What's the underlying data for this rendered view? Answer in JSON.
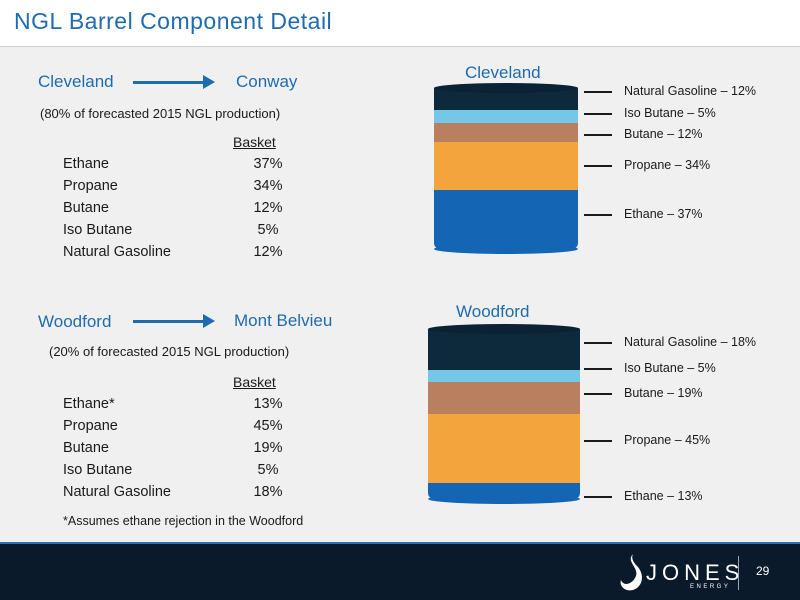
{
  "title": "NGL Barrel Component Detail",
  "colors": {
    "accent": "#1e6bb0",
    "footer": "#0b1a2a",
    "ethane": "#1565b5",
    "propane": "#f4a43c",
    "butane": "#b8805f",
    "iso_butane": "#74c7e6",
    "natural_gasoline": "#0d2a3d"
  },
  "cleveland": {
    "from": "Cleveland",
    "to": "Conway",
    "subtitle": "(80% of forecasted 2015 NGL production)",
    "basket_header": "Basket",
    "rows": [
      {
        "name": "Ethane",
        "value": "37%"
      },
      {
        "name": "Propane",
        "value": "34%"
      },
      {
        "name": "Butane",
        "value": "12%"
      },
      {
        "name": "Iso Butane",
        "value": "5%"
      },
      {
        "name": "Natural Gasoline",
        "value": "12%"
      }
    ],
    "barrel_label": "Cleveland",
    "legend": [
      "Natural Gasoline – 12%",
      "Iso Butane – 5%",
      "Butane – 12%",
      "Propane – 34%",
      "Ethane – 37%"
    ]
  },
  "woodford": {
    "from": "Woodford",
    "to": "Mont Belvieu",
    "subtitle": "(20% of forecasted 2015 NGL production)",
    "basket_header": "Basket",
    "rows": [
      {
        "name": "Ethane*",
        "value": "13%"
      },
      {
        "name": "Propane",
        "value": "45%"
      },
      {
        "name": "Butane",
        "value": "19%"
      },
      {
        "name": "Iso Butane",
        "value": "5%"
      },
      {
        "name": "Natural Gasoline",
        "value": "18%"
      }
    ],
    "barrel_label": "Woodford",
    "legend": [
      "Natural Gasoline – 18%",
      "Iso Butane – 5%",
      "Butane – 19%",
      "Propane – 45%",
      "Ethane – 13%"
    ]
  },
  "footnote": "*Assumes ethane rejection in the Woodford",
  "footer": {
    "logo_text": "JONES",
    "logo_subtext": "ENERGY",
    "page_number": "29"
  }
}
